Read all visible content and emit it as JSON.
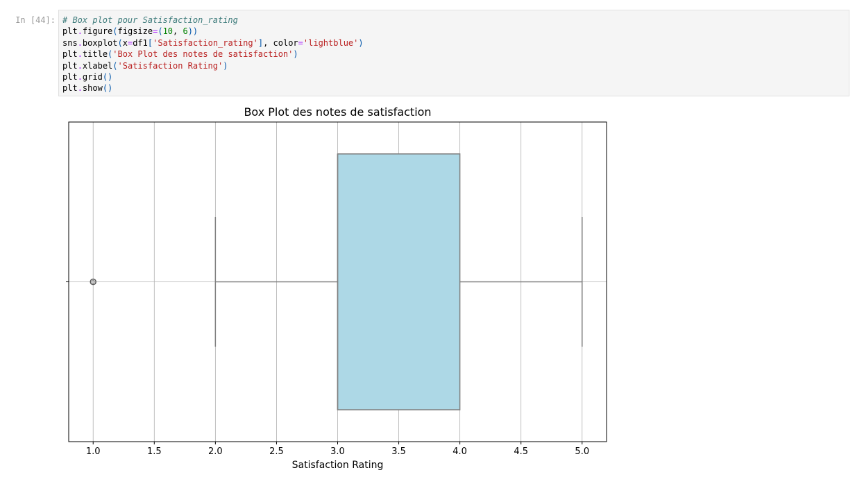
{
  "cell": {
    "prompt": "In [44]:",
    "code_lines": [
      [
        {
          "t": "# Box plot pour Satisfaction_rating",
          "c": "c-comment"
        }
      ],
      [
        {
          "t": "plt",
          "c": ""
        },
        {
          "t": ".",
          "c": "c-op"
        },
        {
          "t": "figure",
          "c": ""
        },
        {
          "t": "(",
          "c": "c-paren"
        },
        {
          "t": "figsize",
          "c": ""
        },
        {
          "t": "=",
          "c": "c-op"
        },
        {
          "t": "(",
          "c": "c-paren"
        },
        {
          "t": "10",
          "c": "c-num"
        },
        {
          "t": ", ",
          "c": ""
        },
        {
          "t": "6",
          "c": "c-num"
        },
        {
          "t": "))",
          "c": "c-paren"
        }
      ],
      [
        {
          "t": "sns",
          "c": ""
        },
        {
          "t": ".",
          "c": "c-op"
        },
        {
          "t": "boxplot",
          "c": ""
        },
        {
          "t": "(",
          "c": "c-paren"
        },
        {
          "t": "x",
          "c": ""
        },
        {
          "t": "=",
          "c": "c-op"
        },
        {
          "t": "df1",
          "c": ""
        },
        {
          "t": "[",
          "c": "c-paren"
        },
        {
          "t": "'Satisfaction_rating'",
          "c": "c-str"
        },
        {
          "t": "]",
          "c": "c-paren"
        },
        {
          "t": ", ",
          "c": ""
        },
        {
          "t": "color",
          "c": ""
        },
        {
          "t": "=",
          "c": "c-op"
        },
        {
          "t": "'lightblue'",
          "c": "c-str"
        },
        {
          "t": ")",
          "c": "c-paren"
        }
      ],
      [
        {
          "t": "plt",
          "c": ""
        },
        {
          "t": ".",
          "c": "c-op"
        },
        {
          "t": "title",
          "c": ""
        },
        {
          "t": "(",
          "c": "c-paren"
        },
        {
          "t": "'Box Plot des notes de satisfaction'",
          "c": "c-str"
        },
        {
          "t": ")",
          "c": "c-paren"
        }
      ],
      [
        {
          "t": "plt",
          "c": ""
        },
        {
          "t": ".",
          "c": "c-op"
        },
        {
          "t": "xlabel",
          "c": ""
        },
        {
          "t": "(",
          "c": "c-paren"
        },
        {
          "t": "'Satisfaction Rating'",
          "c": "c-str"
        },
        {
          "t": ")",
          "c": "c-paren"
        }
      ],
      [
        {
          "t": "plt",
          "c": ""
        },
        {
          "t": ".",
          "c": "c-op"
        },
        {
          "t": "grid",
          "c": ""
        },
        {
          "t": "()",
          "c": "c-paren"
        }
      ],
      [
        {
          "t": "plt",
          "c": ""
        },
        {
          "t": ".",
          "c": "c-op"
        },
        {
          "t": "show",
          "c": ""
        },
        {
          "t": "()",
          "c": "c-paren"
        }
      ]
    ]
  },
  "chart_data": {
    "type": "box",
    "title": "Box Plot des notes de satisfaction",
    "xlabel": "Satisfaction Rating",
    "ylabel": "",
    "xlim": [
      0.8,
      5.2
    ],
    "xticks": [
      1.0,
      1.5,
      2.0,
      2.5,
      3.0,
      3.5,
      4.0,
      4.5,
      5.0
    ],
    "xtick_labels": [
      "1.0",
      "1.5",
      "2.0",
      "2.5",
      "3.0",
      "3.5",
      "4.0",
      "4.5",
      "5.0"
    ],
    "grid": true,
    "box_color": "#add8e6",
    "line_color": "#7f7f7f",
    "whisker_low": 2.0,
    "q1": 3.0,
    "median": 3.0,
    "q3": 4.0,
    "whisker_high": 5.0,
    "outliers": [
      1.0
    ]
  }
}
